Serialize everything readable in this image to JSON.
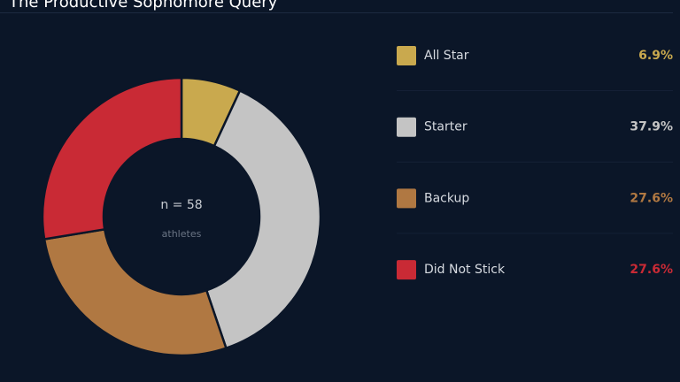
{
  "chart_data": {
    "type": "pie",
    "title": "The Productive Sophomore Query",
    "center_label": "n = 58",
    "center_sublabel": "athletes",
    "categories": [
      "All Star",
      "Starter",
      "Backup",
      "Did Not Stick"
    ],
    "values": [
      6.9,
      37.9,
      27.6,
      27.6
    ],
    "value_labels": [
      "6.9%",
      "37.9%",
      "27.6%",
      "27.6%"
    ],
    "colors": [
      "#c9a94e",
      "#c4c4c4",
      "#b07842",
      "#c92a35"
    ]
  }
}
